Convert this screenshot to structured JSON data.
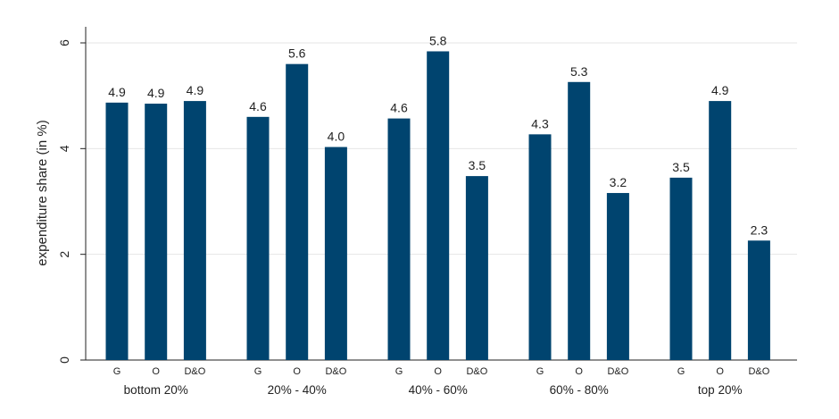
{
  "chart_data": {
    "type": "bar",
    "groups": [
      "bottom 20%",
      "20% - 40%",
      "40% - 60%",
      "60% - 80%",
      "top 20%"
    ],
    "subcategories": [
      "G",
      "O",
      "D&O"
    ],
    "values": [
      [
        4.87,
        4.85,
        4.9
      ],
      [
        4.6,
        5.6,
        4.03
      ],
      [
        4.57,
        5.84,
        3.48
      ],
      [
        4.27,
        5.26,
        3.16
      ],
      [
        3.45,
        4.9,
        2.26
      ]
    ],
    "labels": [
      [
        "4.9",
        "4.9",
        "4.9"
      ],
      [
        "4.6",
        "5.6",
        "4.0"
      ],
      [
        "4.6",
        "5.8",
        "3.5"
      ],
      [
        "4.3",
        "5.3",
        "3.2"
      ],
      [
        "3.5",
        "4.9",
        "2.3"
      ]
    ],
    "ylabel": "expenditure share (in %)",
    "ylim": [
      0,
      6
    ],
    "yticks": [
      0,
      2,
      4,
      6
    ],
    "bar_color": "#00446f",
    "grid": true
  }
}
